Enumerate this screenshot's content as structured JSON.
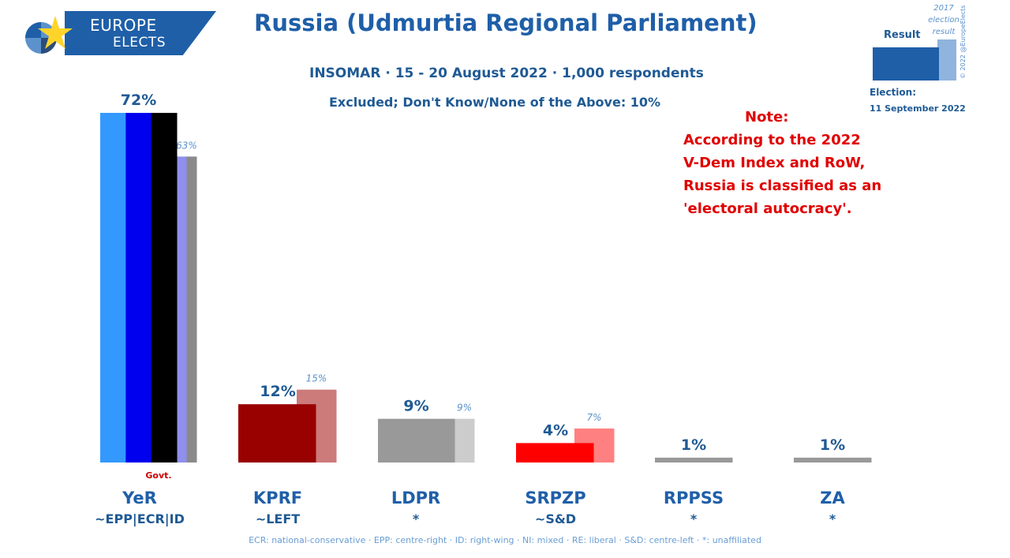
{
  "header": {
    "logo_line1": "EUROPE",
    "logo_line2": "ELECTS",
    "title": "Russia (Udmurtia Regional Parliament)",
    "subtitle": "INSOMAR · 15 - 20 August 2022 · 1,000 respondents",
    "excluded": "Excluded; Don't Know/None of the Above: 10%"
  },
  "note": {
    "heading": "Note:",
    "lines": [
      "According to the 2022",
      "V-Dem Index and RoW,",
      "Russia is classified as an",
      "'electoral autocracy'."
    ]
  },
  "legend": {
    "result_label": "Result",
    "election_result_label": "2017 election result",
    "election_label": "Election:",
    "election_date": "11 September 2022",
    "copyright": "© 2022 @EuropeElects",
    "result_color": "#1f5fa8",
    "previous_color": "#8fb4de"
  },
  "footer": "ECR: national-conservative · EPP: centre-right · ID: right-wing · NI: mixed · RE: liberal · S&D: centre-left · *: unaffiliated",
  "chart_data": {
    "type": "bar",
    "ylim": [
      0,
      72
    ],
    "categories": [
      "YeR",
      "KPRF",
      "LDPR",
      "SRPZP",
      "RPPSS",
      "ZA"
    ],
    "affiliations": [
      "~EPP|ECR|ID",
      "~LEFT",
      "*",
      "~S&D",
      "*",
      "*"
    ],
    "series": [
      {
        "values": [
          72,
          12,
          9,
          4,
          1,
          1
        ],
        "labels": [
          "72%",
          "12%",
          "9%",
          "4%",
          "1%",
          "1%"
        ]
      },
      {
        "name": "2017 election result",
        "values": [
          63,
          15,
          9,
          7,
          null,
          null
        ],
        "labels": [
          "63%",
          "15%",
          "9%",
          "7%",
          "",
          ""
        ]
      }
    ],
    "current_colors": [
      [
        "#3399ff",
        "#0000ee",
        "#000000"
      ],
      [
        "#990000"
      ],
      [
        "#999999"
      ],
      [
        "#ff0000"
      ],
      [
        "#999999"
      ],
      [
        "#999999"
      ]
    ],
    "previous_colors": [
      [
        "#8f8fee",
        "#8a8a8a"
      ],
      [
        "#cc7a7a"
      ],
      [
        "#cccccc"
      ],
      [
        "#ff8080"
      ],
      [],
      []
    ],
    "annotations": [
      {
        "category": "YeR",
        "text": "Govt."
      }
    ]
  }
}
